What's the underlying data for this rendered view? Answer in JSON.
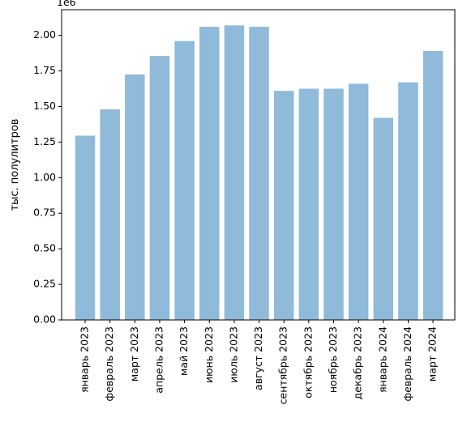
{
  "chart_data": {
    "type": "bar",
    "categories": [
      "январь 2023",
      "февраль 2023",
      "март 2023",
      "апрель 2023",
      "май 2023",
      "июнь 2023",
      "июль 2023",
      "август 2023",
      "сентябрь 2023",
      "октябрь 2023",
      "ноябрь 2023",
      "декабрь 2023",
      "январь 2024",
      "февраль 2024",
      "март 2024"
    ],
    "values": [
      1295000,
      1480000,
      1725000,
      1855000,
      1960000,
      2060000,
      2070000,
      2060000,
      1610000,
      1625000,
      1625000,
      1660000,
      1420000,
      1670000,
      1890000
    ],
    "title": "",
    "xlabel": "",
    "ylabel": "тыс. полулитров",
    "offset_label": "1e6",
    "ylim": [
      0,
      2.18
    ],
    "yticks": [
      "0.00",
      "0.25",
      "0.50",
      "0.75",
      "1.00",
      "1.25",
      "1.50",
      "1.75",
      "2.00"
    ],
    "grid": false,
    "legend": "none",
    "bar_color": "#8fbad9"
  }
}
